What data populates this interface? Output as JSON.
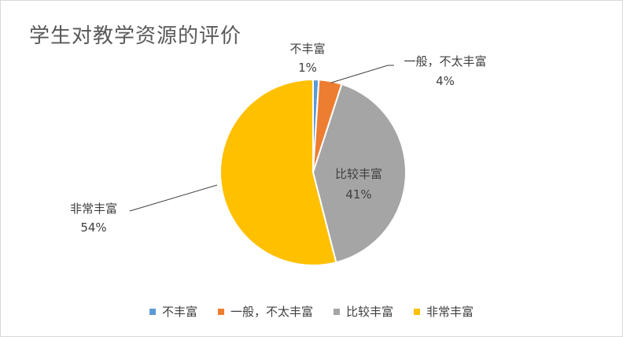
{
  "chart_data": {
    "type": "pie",
    "title": "学生对教学资源的评价",
    "slices": [
      {
        "label": "不丰富",
        "value": 1,
        "percent_label": "1%",
        "color": "#5b9bd5"
      },
      {
        "label": "一般，不太丰富",
        "value": 4,
        "percent_label": "4%",
        "color": "#ed7d31"
      },
      {
        "label": "比较丰富",
        "value": 41,
        "percent_label": "41%",
        "color": "#a5a5a5"
      },
      {
        "label": "非常丰富",
        "value": 54,
        "percent_label": "54%",
        "color": "#ffc000"
      }
    ],
    "legend_position": "bottom",
    "data_labels": "category and percentage"
  }
}
